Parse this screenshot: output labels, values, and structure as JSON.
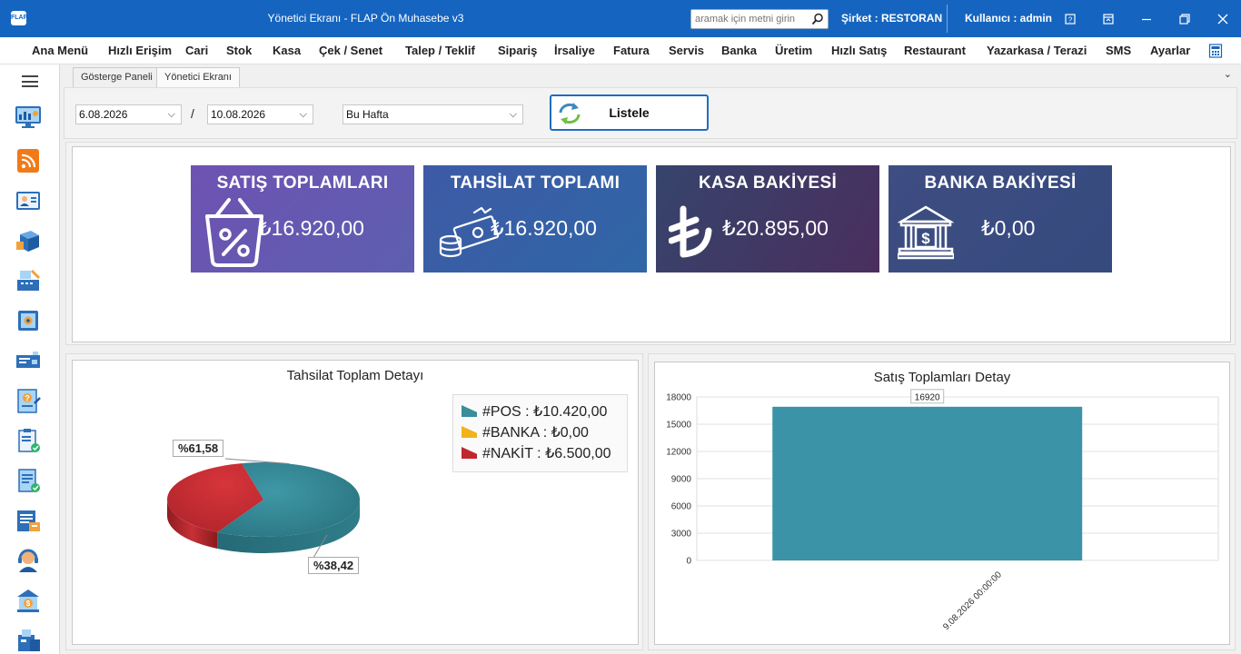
{
  "window": {
    "title": "Yönetici Ekranı - FLAP Ön Muhasebe v3",
    "app_icon": "FLAP",
    "search_placeholder": "aramak için metni girin",
    "company": "Şirket : RESTORAN",
    "user": "Kullanıcı : admin",
    "controls": [
      "help-icon",
      "restore-layout-icon",
      "minimize-icon",
      "maximize-icon",
      "close-icon"
    ]
  },
  "menu": [
    "Ana Menü",
    "Hızlı Erişim",
    "Cari",
    "Stok",
    "Kasa",
    "Çek / Senet",
    "Talep / Teklif",
    "Sipariş",
    "İrsaliye",
    "Fatura",
    "Servis",
    "Banka",
    "Üretim",
    "Hızlı Satış",
    "Restaurant",
    "Yazarkasa / Terazi",
    "SMS",
    "Ayarlar"
  ],
  "tabs": [
    "Gösterge Paneli",
    "Yönetici Ekranı"
  ],
  "active_tab": "Yönetici Ekranı",
  "filters": {
    "start_date": "6.08.2026",
    "end_date": "10.08.2026",
    "separator": "/",
    "period": "Bu Hafta",
    "list_button": "Listele"
  },
  "cards": [
    {
      "title": "SATIŞ TOPLAMLARI",
      "value": "₺16.920,00",
      "icon": "shopping-basket-percent-icon",
      "color": "#6a55b0"
    },
    {
      "title": "TAHSİLAT TOPLAMI",
      "value": "₺16.920,00",
      "icon": "cash-money-icon",
      "color": "#3a5ea4"
    },
    {
      "title": "KASA BAKİYESİ",
      "value": "₺20.895,00",
      "icon": "lira-sign-icon",
      "color": "#3d3e66"
    },
    {
      "title": "BANKA BAKİYESİ",
      "value": "₺0,00",
      "icon": "bank-icon",
      "color": "#3e4d82"
    }
  ],
  "pie_chart": {
    "title": "Tahsilat Toplam Detayı",
    "legend": [
      {
        "label": "#POS : ₺10.420,00",
        "color": "#3a8d9b"
      },
      {
        "label": "#BANKA : ₺0,00",
        "color": "#f2b21b"
      },
      {
        "label": "#NAKİT : ₺6.500,00",
        "color": "#c0282e"
      }
    ],
    "labels": [
      "%61,58",
      "%38,42"
    ]
  },
  "chart_data": [
    {
      "type": "pie",
      "title": "Tahsilat Toplam Detayı",
      "categories": [
        "#POS",
        "#BANKA",
        "#NAKİT"
      ],
      "values": [
        10420,
        0,
        6500
      ],
      "percent_labels": [
        "%61,58",
        "%38,42"
      ],
      "legend": "top-right"
    },
    {
      "type": "bar",
      "title": "Satış Toplamları Detay",
      "categories": [
        "9.08.2026 00:00:00"
      ],
      "values": [
        16920
      ],
      "data_labels": [
        "16920"
      ],
      "yticks": [
        "0",
        "3000",
        "6000",
        "9000",
        "12000",
        "15000",
        "18000"
      ],
      "ylim": [
        0,
        18000
      ],
      "grid": true,
      "color": "#3a93a6"
    }
  ]
}
